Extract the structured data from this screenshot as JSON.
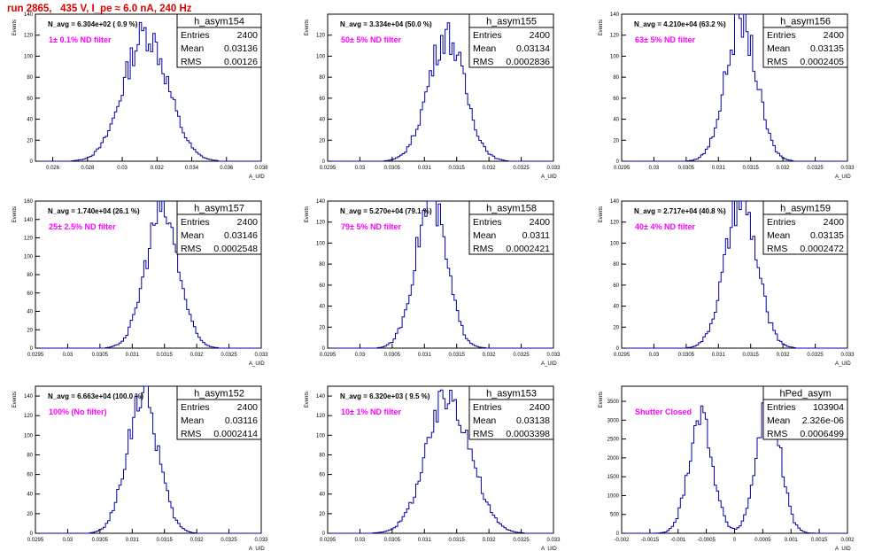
{
  "run_title": "run 2865,   435 V, I_pe ≈ 6.0 nA, 240 Hz",
  "chart_data": [
    {
      "type": "histogram",
      "name": "h_asym154",
      "navg": "N_avg = 6.304e+02 ( 0.9 %)",
      "annotation": "1± 0.1% ND filter",
      "stats": {
        "entries": "2400",
        "mean": "0.03136",
        "rms": "0.00126"
      },
      "xlim": [
        0.025,
        0.038
      ],
      "ylim": [
        0,
        140
      ],
      "xticks": [
        0.026,
        0.028,
        0.03,
        0.032,
        0.034,
        0.036,
        0.038
      ],
      "xtick_labels": [
        "0.026",
        "0.028",
        "0.03",
        "0.032",
        "0.034",
        "0.036",
        "0.038"
      ],
      "yticks": [
        0,
        20,
        40,
        60,
        80,
        100,
        120,
        140
      ],
      "ytick_labels": [
        "0",
        "20",
        "40",
        "60",
        "80",
        "100",
        "120",
        "140"
      ],
      "xlabel": "A_UID",
      "ylabel": "Events",
      "center": 0.03136,
      "sigma": 0.00126,
      "peak": 122
    },
    {
      "type": "histogram",
      "name": "h_asym155",
      "navg": "N_avg = 3.334e+04 (50.0 %)",
      "annotation": "50± 5% ND filter",
      "stats": {
        "entries": "2400",
        "mean": "0.03134",
        "rms": "0.0002836"
      },
      "xlim": [
        0.0295,
        0.033
      ],
      "ylim": [
        0,
        140
      ],
      "xticks": [
        0.0295,
        0.03,
        0.0305,
        0.031,
        0.0315,
        0.032,
        0.0325,
        0.033
      ],
      "xtick_labels": [
        "0.0295",
        "0.03",
        "0.0305",
        "0.031",
        "0.0315",
        "0.032",
        "0.0325",
        "0.033"
      ],
      "yticks": [
        0,
        20,
        40,
        60,
        80,
        100,
        120
      ],
      "ytick_labels": [
        "0",
        "20",
        "40",
        "60",
        "80",
        "100",
        "120"
      ],
      "xlabel": "A_UID",
      "ylabel": "Events",
      "center": 0.03134,
      "sigma": 0.0002836,
      "peak": 120
    },
    {
      "type": "histogram",
      "name": "h_asym156",
      "navg": "N_avg = 4.210e+04 (63.2 %)",
      "annotation": "63± 5% ND filter",
      "stats": {
        "entries": "2400",
        "mean": "0.03135",
        "rms": "0.0002405"
      },
      "xlim": [
        0.0295,
        0.033
      ],
      "ylim": [
        0,
        140
      ],
      "xticks": [
        0.0295,
        0.03,
        0.0305,
        0.031,
        0.0315,
        0.032,
        0.0325,
        0.033
      ],
      "xtick_labels": [
        "0.0295",
        "0.03",
        "0.0305",
        "0.031",
        "0.0315",
        "0.032",
        "0.0325",
        "0.033"
      ],
      "yticks": [
        0,
        20,
        40,
        60,
        80,
        100,
        120,
        140
      ],
      "ytick_labels": [
        "0",
        "20",
        "40",
        "60",
        "80",
        "100",
        "120",
        "140"
      ],
      "xlabel": "A_UID",
      "ylabel": "Events",
      "center": 0.03135,
      "sigma": 0.0002405,
      "peak": 133
    },
    {
      "type": "histogram",
      "name": "h_asym157",
      "navg": "N_avg = 1.740e+04 (26.1 %)",
      "annotation": "25± 2.5% ND filter",
      "stats": {
        "entries": "2400",
        "mean": "0.03146",
        "rms": "0.0002548"
      },
      "xlim": [
        0.0295,
        0.033
      ],
      "ylim": [
        0,
        160
      ],
      "xticks": [
        0.0295,
        0.03,
        0.0305,
        0.031,
        0.0315,
        0.032,
        0.0325,
        0.033
      ],
      "xtick_labels": [
        "0.0295",
        "0.03",
        "0.0305",
        "0.031",
        "0.0315",
        "0.032",
        "0.0325",
        "0.033"
      ],
      "yticks": [
        0,
        20,
        40,
        60,
        80,
        100,
        120,
        140,
        160
      ],
      "ytick_labels": [
        "0",
        "20",
        "40",
        "60",
        "80",
        "100",
        "120",
        "140",
        "160"
      ],
      "xlabel": "A_UID",
      "ylabel": "Events",
      "center": 0.03146,
      "sigma": 0.0002548,
      "peak": 150
    },
    {
      "type": "histogram",
      "name": "h_asym158",
      "navg": "N_avg = 5.270e+04 (79.1 %)",
      "annotation": "79± 5% ND filter",
      "stats": {
        "entries": "2400",
        "mean": "0.0311",
        "rms": "0.0002421"
      },
      "xlim": [
        0.0295,
        0.033
      ],
      "ylim": [
        0,
        140
      ],
      "xticks": [
        0.0295,
        0.03,
        0.0305,
        0.031,
        0.0315,
        0.032,
        0.0325,
        0.033
      ],
      "xtick_labels": [
        "0.0295",
        "0.03",
        "0.0305",
        "0.031",
        "0.0315",
        "0.032",
        "0.0325",
        "0.033"
      ],
      "yticks": [
        0,
        20,
        40,
        60,
        80,
        100,
        120,
        140
      ],
      "ytick_labels": [
        "0",
        "20",
        "40",
        "60",
        "80",
        "100",
        "120",
        "140"
      ],
      "xlabel": "A_UID",
      "ylabel": "Events",
      "center": 0.0311,
      "sigma": 0.0002421,
      "peak": 140
    },
    {
      "type": "histogram",
      "name": "h_asym159",
      "navg": "N_avg = 2.717e+04 (40.8 %)",
      "annotation": "40± 4% ND filter",
      "stats": {
        "entries": "2400",
        "mean": "0.03135",
        "rms": "0.0002472"
      },
      "xlim": [
        0.0295,
        0.033
      ],
      "ylim": [
        0,
        140
      ],
      "xticks": [
        0.0295,
        0.03,
        0.0305,
        0.031,
        0.0315,
        0.032,
        0.0325,
        0.033
      ],
      "xtick_labels": [
        "0.0295",
        "0.03",
        "0.0305",
        "0.031",
        "0.0315",
        "0.032",
        "0.0325",
        "0.033"
      ],
      "yticks": [
        0,
        20,
        40,
        60,
        80,
        100,
        120,
        140
      ],
      "ytick_labels": [
        "0",
        "20",
        "40",
        "60",
        "80",
        "100",
        "120",
        "140"
      ],
      "xlabel": "A_UID",
      "ylabel": "Events",
      "center": 0.03135,
      "sigma": 0.0002472,
      "peak": 138
    },
    {
      "type": "histogram",
      "name": "h_asym152",
      "navg": "N_avg = 6.663e+04 (100.0 %)",
      "annotation": "100% (No filter)",
      "stats": {
        "entries": "2400",
        "mean": "0.03116",
        "rms": "0.0002414"
      },
      "xlim": [
        0.0295,
        0.033
      ],
      "ylim": [
        0,
        150
      ],
      "xticks": [
        0.0295,
        0.03,
        0.0305,
        0.031,
        0.0315,
        0.032,
        0.0325,
        0.033
      ],
      "xtick_labels": [
        "0.0295",
        "0.03",
        "0.0305",
        "0.031",
        "0.0315",
        "0.032",
        "0.0325",
        "0.033"
      ],
      "yticks": [
        0,
        20,
        40,
        60,
        80,
        100,
        120,
        140
      ],
      "ytick_labels": [
        "0",
        "20",
        "40",
        "60",
        "80",
        "100",
        "120",
        "140"
      ],
      "xlabel": "A_UID",
      "ylabel": "Events",
      "center": 0.03116,
      "sigma": 0.0002414,
      "peak": 142
    },
    {
      "type": "histogram",
      "name": "h_asym153",
      "navg": "N_avg = 6.320e+03 ( 9.5 %)",
      "annotation": "10± 1% ND filter",
      "stats": {
        "entries": "2400",
        "mean": "0.03138",
        "rms": "0.0003398"
      },
      "xlim": [
        0.0295,
        0.033
      ],
      "ylim": [
        0,
        150
      ],
      "xticks": [
        0.0295,
        0.03,
        0.0305,
        0.031,
        0.0315,
        0.032,
        0.0325,
        0.033
      ],
      "xtick_labels": [
        "0.0295",
        "0.03",
        "0.0305",
        "0.031",
        "0.0315",
        "0.032",
        "0.0325",
        "0.033"
      ],
      "yticks": [
        0,
        20,
        40,
        60,
        80,
        100,
        120,
        140
      ],
      "ytick_labels": [
        "0",
        "20",
        "40",
        "60",
        "80",
        "100",
        "120",
        "140"
      ],
      "xlabel": "A_UID",
      "ylabel": "Events",
      "center": 0.03138,
      "sigma": 0.0003398,
      "peak": 140
    },
    {
      "type": "histogram",
      "name": "hPed_asym",
      "navg": "",
      "annotation": "Shutter Closed",
      "stats": {
        "entries": "103904",
        "mean": "2.326e-06",
        "rms": "0.0006499"
      },
      "xlim": [
        -0.002,
        0.002
      ],
      "ylim": [
        0,
        3900
      ],
      "xticks": [
        -0.002,
        -0.0015,
        -0.001,
        -0.0005,
        0,
        0.0005,
        0.001,
        0.0015,
        0.002
      ],
      "xtick_labels": [
        "-0.002",
        "-0.0015",
        "-0.001",
        "-0.0005",
        "0",
        "0.0005",
        "0.001",
        "0.0015",
        "0.002"
      ],
      "yticks": [
        0,
        500,
        1000,
        1500,
        2000,
        2500,
        3000,
        3500
      ],
      "ytick_labels": [
        "0",
        "500",
        "1000",
        "1500",
        "2000",
        "2500",
        "3000",
        "3500"
      ],
      "xlabel": "A_UID",
      "ylabel": "Events",
      "peaks": [
        {
          "center": -0.0006,
          "sigma": 0.00021,
          "peak": 3150
        },
        {
          "center": 0.0006,
          "sigma": 0.00021,
          "peak": 3500
        }
      ]
    }
  ]
}
